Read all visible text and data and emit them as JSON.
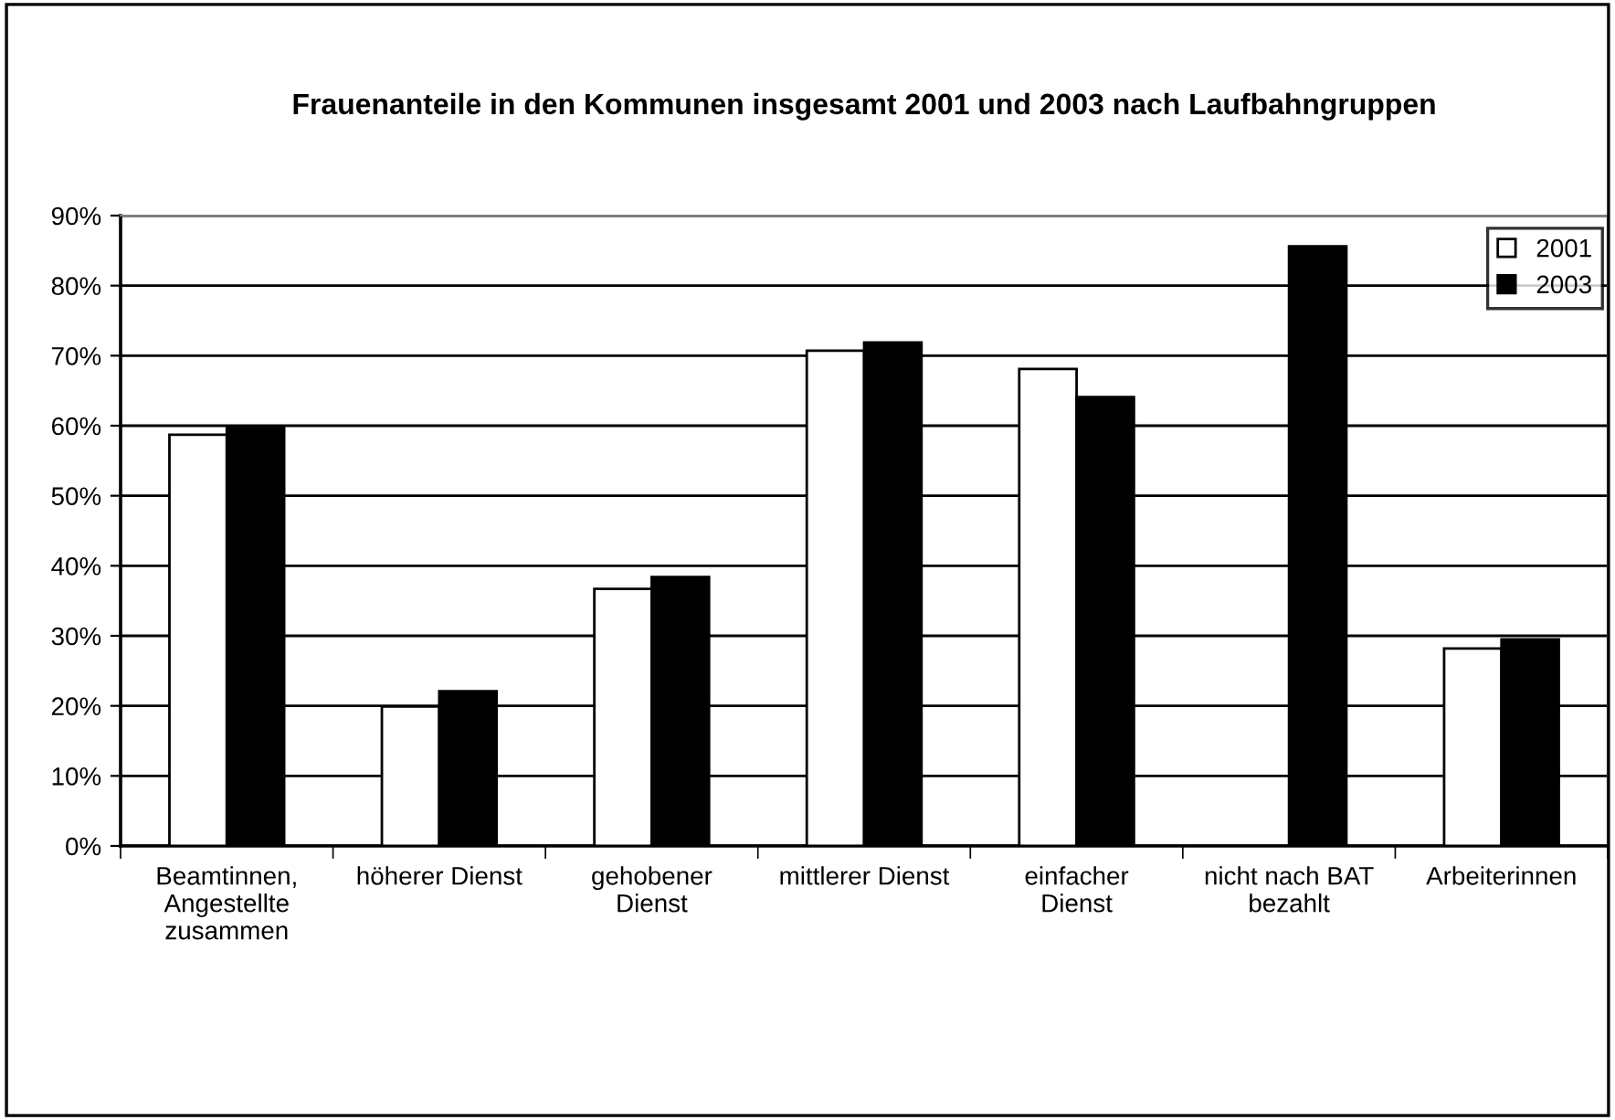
{
  "chart_data": {
    "type": "bar",
    "title": "Frauenanteile in den Kommunen insgesamt 2001 und 2003 nach Laufbahngruppen",
    "categories": [
      "Beamtinnen,\nAngestellte\nzusammen",
      "höherer Dienst",
      "gehobener\nDienst",
      "mittlerer Dienst",
      "einfacher\nDienst",
      "nicht nach BAT\nbezahlt",
      "Arbeiterinnen"
    ],
    "series": [
      {
        "name": "2001",
        "color": "#ffffff",
        "values": [
          58.7,
          19.9,
          36.7,
          70.7,
          68.1,
          null,
          28.2
        ]
      },
      {
        "name": "2003",
        "color": "#000000",
        "values": [
          59.8,
          22.1,
          38.4,
          71.9,
          64.1,
          85.6,
          29.5
        ]
      }
    ],
    "ylim": [
      0,
      90
    ],
    "yticks": [
      {
        "value": 0,
        "label": "0%"
      },
      {
        "value": 10,
        "label": "10%"
      },
      {
        "value": 20,
        "label": "20%"
      },
      {
        "value": 30,
        "label": "30%"
      },
      {
        "value": 40,
        "label": "40%"
      },
      {
        "value": 50,
        "label": "50%"
      },
      {
        "value": 60,
        "label": "60%"
      },
      {
        "value": 70,
        "label": "70%"
      },
      {
        "value": 80,
        "label": "80%"
      },
      {
        "value": 90,
        "label": "90%"
      }
    ],
    "grid": "y",
    "legend": "top right"
  }
}
